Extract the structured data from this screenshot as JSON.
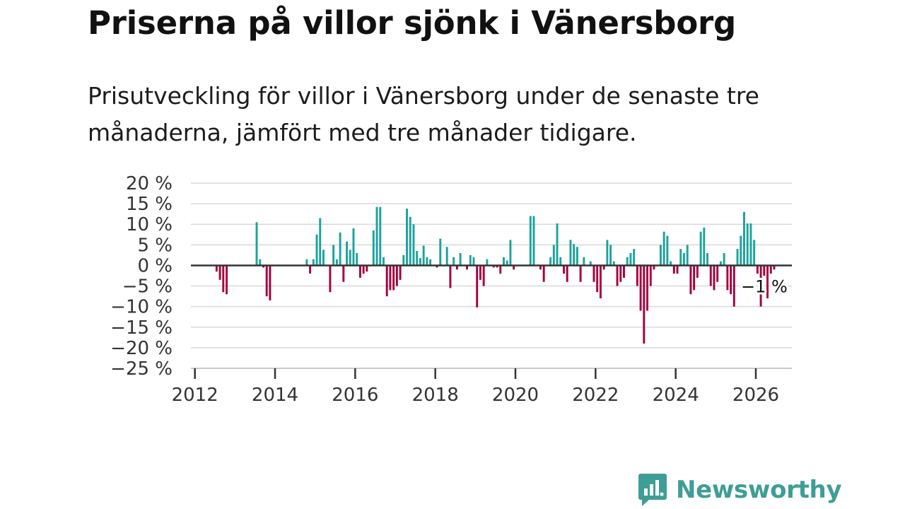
{
  "title": "Priserna på villor sjönk i Vänersborg",
  "subtitle": "Prisutveckling för villor i Vänersborg under de senaste tre månaderna, jämfört med tre månader tidigare.",
  "brand": {
    "name": "Newsworthy",
    "color": "#3e9e95"
  },
  "chart_data": {
    "type": "bar",
    "title": "Priserna på villor sjönk i Vänersborg",
    "xlabel": "",
    "ylabel": "",
    "x_start": 2012,
    "x_step_months": 1,
    "xlim": [
      2011.9,
      2026.9
    ],
    "ylim": [
      -25,
      20
    ],
    "yticks": [
      20,
      15,
      10,
      5,
      0,
      -5,
      -10,
      -15,
      -20,
      -25
    ],
    "ytick_labels": [
      "20 %",
      "15 %",
      "10 %",
      "5 %",
      "0 %",
      "−5 %",
      "−10 %",
      "−15 %",
      "−20 %",
      "−25 %"
    ],
    "xticks": [
      2012,
      2014,
      2016,
      2018,
      2020,
      2022,
      2024,
      2026
    ],
    "xtick_labels": [
      "2012",
      "2014",
      "2016",
      "2018",
      "2020",
      "2022",
      "2024",
      "2026"
    ],
    "positive_color": "#1ba39c",
    "negative_color": "#a5003e",
    "grid": true,
    "annotation": {
      "label": "−1 %",
      "value": -1
    },
    "values": [
      null,
      null,
      null,
      null,
      null,
      null,
      -1.5,
      -3.5,
      -6.5,
      -7,
      null,
      null,
      null,
      null,
      null,
      null,
      null,
      null,
      10.5,
      1.5,
      -0.5,
      -7.5,
      -8.5,
      null,
      null,
      null,
      null,
      null,
      null,
      null,
      null,
      null,
      null,
      1.5,
      -2,
      1.5,
      7.5,
      11.5,
      3.8,
      null,
      -6.5,
      5,
      1.5,
      8,
      -4,
      5.8,
      3.8,
      9,
      3,
      -3,
      -2,
      -1.5,
      null,
      8.5,
      14.2,
      14.2,
      2,
      -7.5,
      -6,
      -6,
      -5,
      -3.5,
      2.5,
      13.8,
      11.8,
      10,
      3.5,
      1.8,
      4.8,
      2,
      1.5,
      null,
      -0.5,
      6.5,
      null,
      4.5,
      -5.5,
      2,
      -1,
      3,
      null,
      -1,
      2.5,
      2,
      -10.2,
      -3.5,
      -5,
      1.5,
      null,
      -0.5,
      -0.5,
      -2,
      2,
      1.2,
      6.2,
      -1,
      null,
      null,
      null,
      null,
      12,
      12,
      null,
      -1,
      -4,
      null,
      2,
      5,
      10.2,
      2,
      -2,
      -4,
      6.2,
      5.2,
      4.5,
      -4,
      2,
      null,
      1,
      -4,
      -6.5,
      -8,
      -1,
      6.2,
      5,
      1,
      -5,
      -4,
      -3,
      2,
      3,
      4,
      -5,
      -11,
      -19,
      -11,
      -5,
      -1,
      null,
      5,
      8.2,
      7.2,
      1,
      -2,
      -2,
      4,
      3,
      5,
      -7,
      -6,
      -3,
      8.2,
      9.2,
      3,
      -5,
      -6,
      -4,
      1,
      3,
      -6,
      -7,
      -10,
      4,
      7.2,
      13,
      10.2,
      10.2,
      6.2,
      -2,
      -10,
      -2.5,
      -8,
      -2,
      -1
    ]
  }
}
